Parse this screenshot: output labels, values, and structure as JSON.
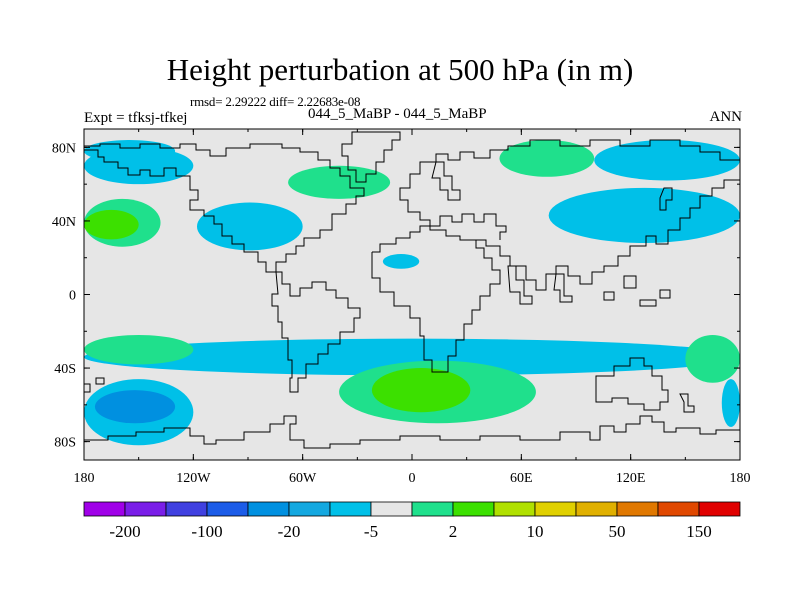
{
  "title": "Height perturbation at 500 hPa (in m)",
  "stats_line": "rmsd= 2.29222 diff= 2.22683e-08",
  "experiment_label": "Expt = tfksj-tfkej",
  "case_label": "044_5_MaBP - 044_5_MaBP",
  "season_label": "ANN",
  "map": {
    "lon_range": [
      -180,
      180
    ],
    "lat_range": [
      -90,
      90
    ],
    "background_color": "#e6e6e6",
    "lat_ticks": [
      {
        "value": 80,
        "label": "80N"
      },
      {
        "value": 40,
        "label": "40N"
      },
      {
        "value": 0,
        "label": "0"
      },
      {
        "value": -40,
        "label": "40S"
      },
      {
        "value": -80,
        "label": "80S"
      }
    ],
    "lon_ticks": [
      {
        "value": -180,
        "label": "180"
      },
      {
        "value": -120,
        "label": "120W"
      },
      {
        "value": -60,
        "label": "60W"
      },
      {
        "value": 0,
        "label": "0"
      },
      {
        "value": 60,
        "label": "60E"
      },
      {
        "value": 120,
        "label": "120E"
      },
      {
        "value": 180,
        "label": "180"
      }
    ],
    "anomaly_regions": [
      {
        "name": "nw-pacific-arctic-band",
        "lon": [
          -180,
          -130
        ],
        "lat": [
          72,
          84
        ],
        "color": "#00c0e8"
      },
      {
        "name": "arctic-band-west",
        "lon": [
          -180,
          -120
        ],
        "lat": [
          60,
          80
        ],
        "color": "#00c0e8"
      },
      {
        "name": "north-atlantic-positive",
        "lon": [
          -68,
          -12
        ],
        "lat": [
          52,
          70
        ],
        "color": "#1fe08c"
      },
      {
        "name": "siberia-positive",
        "lon": [
          48,
          100
        ],
        "lat": [
          64,
          84
        ],
        "color": "#1fe08c"
      },
      {
        "name": "npac-positive",
        "lon": [
          -180,
          -138
        ],
        "lat": [
          26,
          52
        ],
        "color": "#1fe08c"
      },
      {
        "name": "npac-positive-core",
        "lon": [
          -180,
          -150
        ],
        "lat": [
          30,
          46
        ],
        "color": "#3ce000"
      },
      {
        "name": "north-america-negative",
        "lon": [
          -118,
          -60
        ],
        "lat": [
          24,
          50
        ],
        "color": "#00c0e8"
      },
      {
        "name": "mediterranean-negative",
        "lon": [
          -16,
          4
        ],
        "lat": [
          14,
          22
        ],
        "color": "#00c0e8"
      },
      {
        "name": "asia-pacific-negative",
        "lon": [
          75,
          180
        ],
        "lat": [
          28,
          58
        ],
        "color": "#00c0e8"
      },
      {
        "name": "arctic-band-east",
        "lon": [
          100,
          180
        ],
        "lat": [
          62,
          84
        ],
        "color": "#00c0e8"
      },
      {
        "name": "southern-band-negative",
        "lon": [
          -180,
          180
        ],
        "lat": [
          -44,
          -24
        ],
        "color": "#00c0e8"
      },
      {
        "name": "sw-pacific-positive",
        "lon": [
          -180,
          -120
        ],
        "lat": [
          -38,
          -22
        ],
        "color": "#1fe08c"
      },
      {
        "name": "south-atlantic-positive",
        "lon": [
          -40,
          68
        ],
        "lat": [
          -70,
          -36
        ],
        "color": "#1fe08c"
      },
      {
        "name": "south-atlantic-positive-core",
        "lon": [
          -22,
          32
        ],
        "lat": [
          -64,
          -40
        ],
        "color": "#3ce000"
      },
      {
        "name": "south-indian-positive",
        "lon": [
          150,
          180
        ],
        "lat": [
          -48,
          -22
        ],
        "color": "#1fe08c"
      },
      {
        "name": "south-pacific-negative",
        "lon": [
          -180,
          -120
        ],
        "lat": [
          -82,
          -46
        ],
        "color": "#00c0e8"
      },
      {
        "name": "south-pacific-negative-core",
        "lon": [
          -174,
          -130
        ],
        "lat": [
          -70,
          -52
        ],
        "color": "#0090e0"
      },
      {
        "name": "south-indian-negative",
        "lon": [
          170,
          180
        ],
        "lat": [
          -72,
          -46
        ],
        "color": "#00c0e8"
      }
    ]
  },
  "colorbar": {
    "colors": [
      "#a000e8",
      "#7a1ee8",
      "#4040e0",
      "#1c5ce8",
      "#0090e0",
      "#14a8e0",
      "#00c0e8",
      "#e6e6e6",
      "#1fe08c",
      "#3ce000",
      "#b0e000",
      "#e0d000",
      "#e0b000",
      "#e07800",
      "#e04800",
      "#e00000"
    ],
    "labels": [
      "-200",
      "-100",
      "-20",
      "-5",
      "2",
      "10",
      "50",
      "150"
    ]
  }
}
